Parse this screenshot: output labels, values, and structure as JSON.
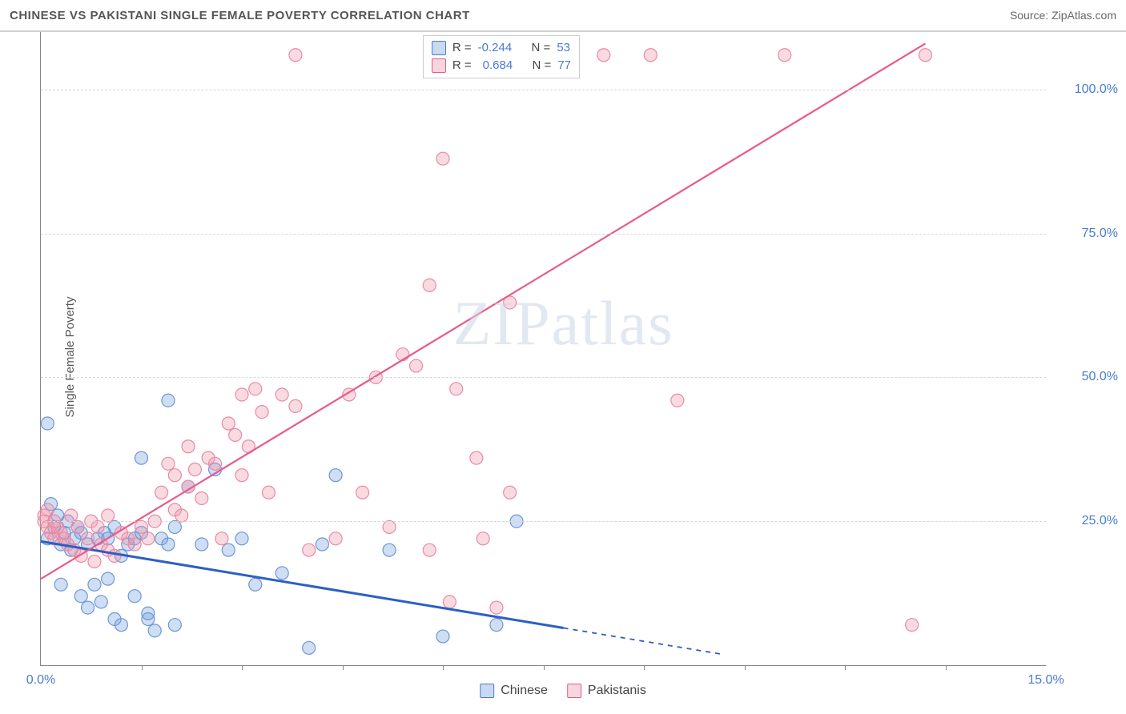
{
  "title": "CHINESE VS PAKISTANI SINGLE FEMALE POVERTY CORRELATION CHART",
  "source_label": "Source:",
  "source_name": "ZipAtlas.com",
  "y_axis_label": "Single Female Poverty",
  "watermark": "ZIPatlas",
  "chart": {
    "type": "scatter",
    "xlim": [
      0,
      15
    ],
    "ylim": [
      0,
      110
    ],
    "ytick_values": [
      25,
      50,
      75,
      100
    ],
    "ytick_labels": [
      "25.0%",
      "50.0%",
      "75.0%",
      "100.0%"
    ],
    "xtick_values": [
      0,
      15
    ],
    "xtick_labels": [
      "0.0%",
      "15.0%"
    ],
    "xtick_marks": [
      1.5,
      3.0,
      4.5,
      6.0,
      7.5,
      9.0,
      10.5,
      12.0,
      13.5
    ],
    "background_color": "#ffffff",
    "grid_color": "#d8d8d8",
    "series": [
      {
        "name": "Chinese",
        "color_fill": "rgba(120,160,220,0.35)",
        "color_stroke": "#6a96d8",
        "marker_radius": 8,
        "R_label": "R =",
        "R": "-0.244",
        "N_label": "N =",
        "N": "53",
        "points": [
          [
            0.1,
            22
          ],
          [
            0.15,
            28
          ],
          [
            0.1,
            42
          ],
          [
            0.2,
            24
          ],
          [
            0.25,
            26
          ],
          [
            0.3,
            21
          ],
          [
            0.35,
            23
          ],
          [
            0.3,
            14
          ],
          [
            0.4,
            25
          ],
          [
            0.45,
            20
          ],
          [
            0.5,
            22
          ],
          [
            0.55,
            24
          ],
          [
            0.6,
            12
          ],
          [
            0.6,
            23
          ],
          [
            0.7,
            10
          ],
          [
            0.7,
            21
          ],
          [
            0.8,
            14
          ],
          [
            0.85,
            22
          ],
          [
            0.9,
            11
          ],
          [
            0.95,
            23
          ],
          [
            1.0,
            15
          ],
          [
            1.0,
            22
          ],
          [
            1.1,
            8
          ],
          [
            1.1,
            24
          ],
          [
            1.2,
            19
          ],
          [
            1.2,
            7
          ],
          [
            1.3,
            21
          ],
          [
            1.4,
            12
          ],
          [
            1.4,
            22
          ],
          [
            1.5,
            36
          ],
          [
            1.5,
            23
          ],
          [
            1.6,
            8
          ],
          [
            1.6,
            9
          ],
          [
            1.7,
            6
          ],
          [
            1.8,
            22
          ],
          [
            1.9,
            46
          ],
          [
            1.9,
            21
          ],
          [
            2.0,
            24
          ],
          [
            2.0,
            7
          ],
          [
            2.2,
            31
          ],
          [
            2.4,
            21
          ],
          [
            2.6,
            34
          ],
          [
            2.8,
            20
          ],
          [
            3.0,
            22
          ],
          [
            3.2,
            14
          ],
          [
            3.6,
            16
          ],
          [
            4.0,
            3
          ],
          [
            4.2,
            21
          ],
          [
            4.4,
            33
          ],
          [
            5.2,
            20
          ],
          [
            6.0,
            5
          ],
          [
            6.8,
            7
          ],
          [
            7.1,
            25
          ]
        ],
        "trend": {
          "x1": 0,
          "y1": 21.5,
          "x2": 8.3,
          "y2": 5.5,
          "solid_until_x": 7.8,
          "extend_to_x": 10.2,
          "color": "#2c5fc4",
          "width": 3
        }
      },
      {
        "name": "Pakistanis",
        "color_fill": "rgba(240,150,170,0.35)",
        "color_stroke": "#e88aa4",
        "marker_radius": 8,
        "R_label": "R =",
        "R": "0.684",
        "N_label": "N =",
        "N": "77",
        "points": [
          [
            0.05,
            25
          ],
          [
            0.05,
            26
          ],
          [
            0.1,
            24
          ],
          [
            0.1,
            27
          ],
          [
            0.15,
            23
          ],
          [
            0.2,
            25
          ],
          [
            0.2,
            22
          ],
          [
            0.25,
            24
          ],
          [
            0.3,
            23
          ],
          [
            0.35,
            22
          ],
          [
            0.4,
            21
          ],
          [
            0.45,
            26
          ],
          [
            0.5,
            20
          ],
          [
            0.55,
            24
          ],
          [
            0.6,
            19
          ],
          [
            0.7,
            22
          ],
          [
            0.75,
            25
          ],
          [
            0.8,
            18
          ],
          [
            0.85,
            24
          ],
          [
            0.9,
            21
          ],
          [
            1.0,
            20
          ],
          [
            1.0,
            26
          ],
          [
            1.1,
            19
          ],
          [
            1.2,
            23
          ],
          [
            1.3,
            22
          ],
          [
            1.4,
            21
          ],
          [
            1.5,
            24
          ],
          [
            1.6,
            22
          ],
          [
            1.7,
            25
          ],
          [
            1.8,
            30
          ],
          [
            1.9,
            35
          ],
          [
            2.0,
            27
          ],
          [
            2.0,
            33
          ],
          [
            2.1,
            26
          ],
          [
            2.2,
            38
          ],
          [
            2.2,
            31
          ],
          [
            2.3,
            34
          ],
          [
            2.4,
            29
          ],
          [
            2.5,
            36
          ],
          [
            2.6,
            35
          ],
          [
            2.7,
            22
          ],
          [
            2.8,
            42
          ],
          [
            2.9,
            40
          ],
          [
            3.0,
            47
          ],
          [
            3.0,
            33
          ],
          [
            3.1,
            38
          ],
          [
            3.2,
            48
          ],
          [
            3.3,
            44
          ],
          [
            3.4,
            30
          ],
          [
            3.6,
            47
          ],
          [
            3.8,
            45
          ],
          [
            3.8,
            106
          ],
          [
            4.0,
            20
          ],
          [
            4.4,
            22
          ],
          [
            4.6,
            47
          ],
          [
            4.8,
            30
          ],
          [
            5.0,
            50
          ],
          [
            5.2,
            24
          ],
          [
            5.4,
            54
          ],
          [
            5.6,
            52
          ],
          [
            5.8,
            66
          ],
          [
            5.8,
            20
          ],
          [
            6.0,
            88
          ],
          [
            6.1,
            11
          ],
          [
            6.2,
            48
          ],
          [
            6.4,
            106
          ],
          [
            6.5,
            36
          ],
          [
            6.6,
            22
          ],
          [
            6.8,
            10
          ],
          [
            7.0,
            63
          ],
          [
            7.0,
            30
          ],
          [
            8.4,
            106
          ],
          [
            9.1,
            106
          ],
          [
            9.5,
            46
          ],
          [
            11.1,
            106
          ],
          [
            13.0,
            7
          ],
          [
            13.2,
            106
          ]
        ],
        "trend": {
          "x1": 0,
          "y1": 15,
          "x2": 13.2,
          "y2": 108,
          "color": "#e85a8a",
          "width": 2.2
        }
      }
    ]
  },
  "bottom_legend": [
    {
      "label": "Chinese",
      "swatch": "blue"
    },
    {
      "label": "Pakistanis",
      "swatch": "pink"
    }
  ]
}
